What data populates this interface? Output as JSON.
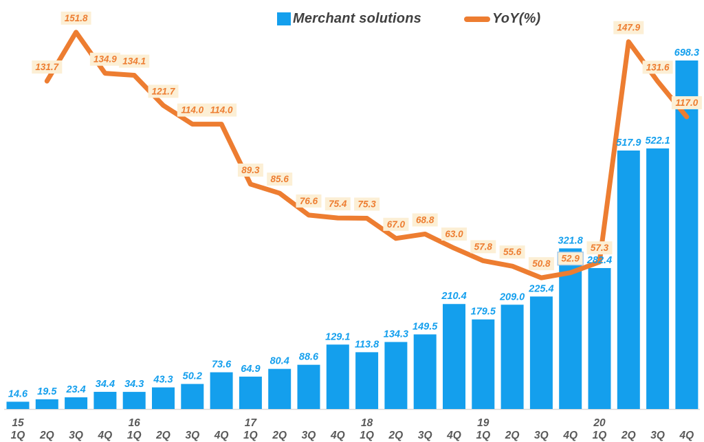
{
  "chart_data": {
    "type": "bar+line combo",
    "title": "",
    "legend_position": "top-center",
    "grid": false,
    "y_axis_visible": false,
    "bar_ylim": [
      0,
      720
    ],
    "line_ylim": [
      0,
      165
    ],
    "value_decimals": 1,
    "categories": [
      {
        "year": "15",
        "quarter": "1Q"
      },
      {
        "year": "",
        "quarter": "2Q"
      },
      {
        "year": "",
        "quarter": "3Q"
      },
      {
        "year": "",
        "quarter": "4Q"
      },
      {
        "year": "16",
        "quarter": "1Q"
      },
      {
        "year": "",
        "quarter": "2Q"
      },
      {
        "year": "",
        "quarter": "3Q"
      },
      {
        "year": "",
        "quarter": "4Q"
      },
      {
        "year": "17",
        "quarter": "1Q"
      },
      {
        "year": "",
        "quarter": "2Q"
      },
      {
        "year": "",
        "quarter": "3Q"
      },
      {
        "year": "",
        "quarter": "4Q"
      },
      {
        "year": "18",
        "quarter": "1Q"
      },
      {
        "year": "",
        "quarter": "2Q"
      },
      {
        "year": "",
        "quarter": "3Q"
      },
      {
        "year": "",
        "quarter": "4Q"
      },
      {
        "year": "19",
        "quarter": "1Q"
      },
      {
        "year": "",
        "quarter": "2Q"
      },
      {
        "year": "",
        "quarter": "3Q"
      },
      {
        "year": "",
        "quarter": "4Q"
      },
      {
        "year": "20",
        "quarter": "1Q"
      },
      {
        "year": "",
        "quarter": "2Q"
      },
      {
        "year": "",
        "quarter": "3Q"
      },
      {
        "year": "",
        "quarter": "4Q"
      }
    ],
    "series": [
      {
        "type": "bar",
        "name": "Merchant solutions",
        "color": "#149FED",
        "label_color": "#149FED",
        "values": [
          14.6,
          19.5,
          23.4,
          34.4,
          34.3,
          43.3,
          50.2,
          73.6,
          64.9,
          80.4,
          88.6,
          129.1,
          113.8,
          134.3,
          149.5,
          210.4,
          179.5,
          209.0,
          225.4,
          321.8,
          282.4,
          517.9,
          522.1,
          698.3
        ]
      },
      {
        "type": "line",
        "name": "YoY(%)",
        "color": "#ED7D31",
        "label_color": "#ED7D31",
        "label_bg": "#FCEFD5",
        "highlight_index": 19,
        "highlight_border": "#9DC3E6",
        "values": [
          null,
          131.7,
          151.8,
          134.9,
          134.1,
          121.7,
          114.0,
          114.0,
          89.3,
          85.6,
          76.6,
          75.4,
          75.3,
          67.0,
          68.8,
          63.0,
          57.8,
          55.6,
          50.8,
          52.9,
          57.3,
          147.9,
          131.6,
          117.0
        ]
      }
    ],
    "axis": {
      "x_tick_color": "#595959",
      "baseline_color": "#D9D9D9"
    }
  }
}
